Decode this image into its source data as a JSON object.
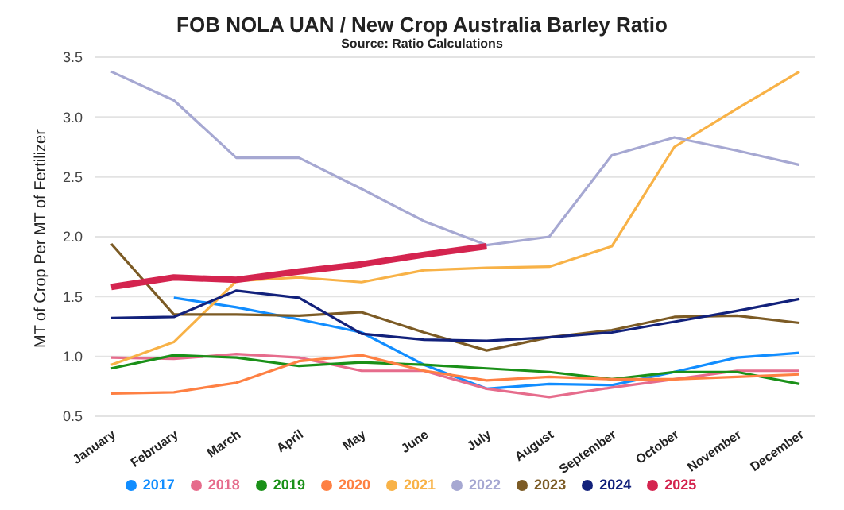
{
  "chart_data": {
    "type": "line",
    "title": "FOB NOLA UAN / New Crop Australia Barley Ratio",
    "subtitle": "Source: Ratio Calculations",
    "ylabel": "MT of Crop Per MT of Fertilizer",
    "categories": [
      "January",
      "February",
      "March",
      "April",
      "May",
      "June",
      "July",
      "August",
      "September",
      "October",
      "November",
      "December"
    ],
    "ylim": [
      0.5,
      3.5
    ],
    "yticks": [
      {
        "value": 0.5,
        "label": "0.5"
      },
      {
        "value": 1,
        "label": "1.0"
      },
      {
        "value": 1.5,
        "label": "1.5"
      },
      {
        "value": 2,
        "label": "2.0"
      },
      {
        "value": 2.5,
        "label": "2.5"
      },
      {
        "value": 3,
        "label": "3.0"
      },
      {
        "value": 3.5,
        "label": "3.5"
      }
    ],
    "grid": "y",
    "legend": "bottom",
    "marker": "none",
    "line_style": "solid",
    "series": [
      {
        "name": "2017",
        "color": "#118dff",
        "values": [
          null,
          1.49,
          1.41,
          1.31,
          1.2,
          0.93,
          0.73,
          0.77,
          0.76,
          0.87,
          0.99,
          1.03
        ]
      },
      {
        "name": "2018",
        "color": "#e66c8c",
        "values": [
          0.99,
          0.98,
          1.02,
          0.99,
          0.88,
          0.88,
          0.73,
          0.66,
          0.74,
          0.81,
          0.88,
          0.88
        ]
      },
      {
        "name": "2019",
        "color": "#1a9018",
        "values": [
          0.9,
          1.01,
          0.99,
          0.92,
          0.95,
          0.93,
          0.9,
          0.87,
          0.81,
          0.87,
          0.87,
          0.77
        ]
      },
      {
        "name": "2020",
        "color": "#fe8043",
        "values": [
          0.69,
          0.7,
          0.78,
          0.96,
          1.01,
          0.88,
          0.8,
          0.83,
          0.81,
          0.81,
          0.83,
          0.85
        ]
      },
      {
        "name": "2021",
        "color": "#f8b247",
        "values": [
          0.93,
          1.12,
          1.63,
          1.66,
          1.62,
          1.72,
          1.74,
          1.75,
          1.92,
          2.75,
          3.07,
          3.38
        ]
      },
      {
        "name": "2022",
        "color": "#a6a8d2",
        "values": [
          3.38,
          3.14,
          2.66,
          2.66,
          2.4,
          2.13,
          1.93,
          2.0,
          2.68,
          2.83,
          2.72,
          2.6
        ]
      },
      {
        "name": "2023",
        "color": "#7c5b25",
        "values": [
          1.94,
          1.35,
          1.35,
          1.34,
          1.37,
          1.2,
          1.05,
          1.16,
          1.22,
          1.33,
          1.34,
          1.28
        ]
      },
      {
        "name": "2024",
        "color": "#12217b",
        "values": [
          1.32,
          1.33,
          1.55,
          1.49,
          1.19,
          1.14,
          1.13,
          1.16,
          1.2,
          1.29,
          1.38,
          1.48
        ]
      },
      {
        "name": "2025",
        "color": "#d4244f",
        "values": [
          1.58,
          1.66,
          1.64,
          1.71,
          1.77,
          1.85,
          1.92,
          null,
          null,
          null,
          null,
          null
        ]
      }
    ]
  }
}
